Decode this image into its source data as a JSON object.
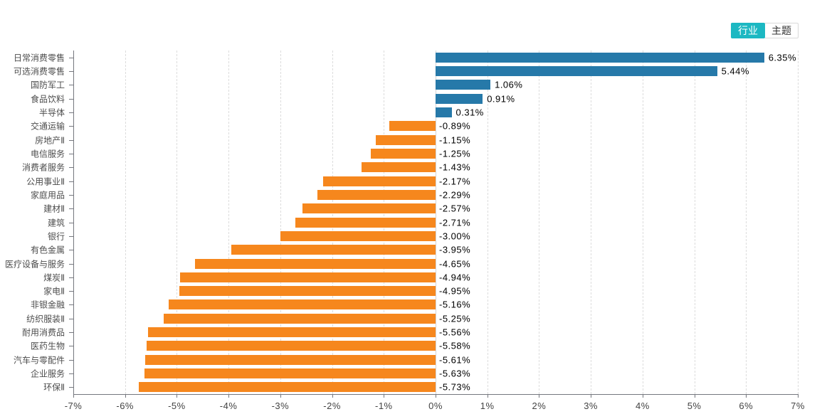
{
  "toolbar": {
    "industry_label": "行业",
    "theme_label": "主题",
    "active_tab": "行业"
  },
  "colors": {
    "positive_bar": "#2679A9",
    "negative_bar": "#F6871D",
    "active_button": "#1CB8C2",
    "grid_line": "#dcdcdc",
    "axis_line": "#75777e"
  },
  "chart_data": {
    "type": "bar",
    "orientation": "horizontal",
    "title": "",
    "xlabel": "",
    "ylabel": "",
    "xlim": [
      -7,
      7
    ],
    "grid": "vertical dashed",
    "legend": "none",
    "x_tick_labels": [
      "-7%",
      "-6%",
      "-5%",
      "-4%",
      "-3%",
      "-2%",
      "-1%",
      "0%",
      "1%",
      "2%",
      "3%",
      "4%",
      "5%",
      "6%",
      "7%"
    ],
    "categories": [
      "日常消费零售",
      "可选消费零售",
      "国防军工",
      "食品饮料",
      "半导体",
      "交通运输",
      "房地产Ⅱ",
      "电信服务",
      "消费者服务",
      "公用事业Ⅱ",
      "家庭用品",
      "建材Ⅱ",
      "建筑",
      "银行",
      "有色金属",
      "医疗设备与服务",
      "煤炭Ⅱ",
      "家电Ⅱ",
      "非银金融",
      "纺织服装Ⅱ",
      "耐用消费品",
      "医药生物",
      "汽车与零配件",
      "企业服务",
      "环保Ⅱ"
    ],
    "values": [
      6.35,
      5.44,
      1.06,
      0.91,
      0.31,
      -0.89,
      -1.15,
      -1.25,
      -1.43,
      -2.17,
      -2.29,
      -2.57,
      -2.71,
      -3.0,
      -3.95,
      -4.65,
      -4.94,
      -4.95,
      -5.16,
      -5.25,
      -5.56,
      -5.58,
      -5.61,
      -5.63,
      -5.73
    ],
    "value_labels": [
      "6.35%",
      "5.44%",
      "1.06%",
      "0.91%",
      "0.31%",
      "-0.89%",
      "-1.15%",
      "-1.25%",
      "-1.43%",
      "-2.17%",
      "-2.29%",
      "-2.57%",
      "-2.71%",
      "-3.00%",
      "-3.95%",
      "-4.65%",
      "-4.94%",
      "-4.95%",
      "-5.16%",
      "-5.25%",
      "-5.56%",
      "-5.58%",
      "-5.61%",
      "-5.63%",
      "-5.73%"
    ]
  }
}
